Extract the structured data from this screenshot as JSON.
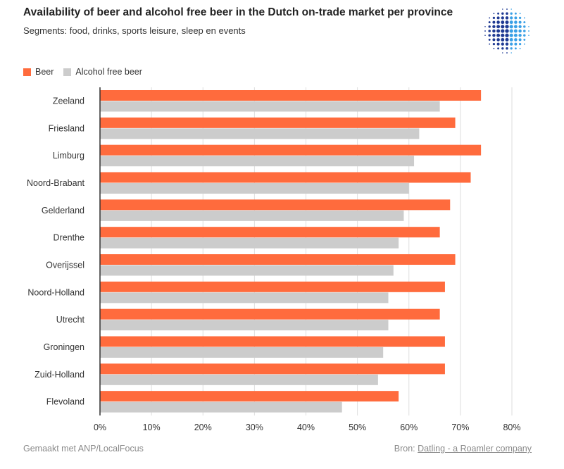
{
  "header": {
    "title": "Availability of beer and alcohol free beer in the Dutch on-trade market per province",
    "subtitle": "Segments: food, drinks, sports leisure, sleep en events"
  },
  "footer": {
    "made_with": "Gemaakt met ANP/LocalFocus",
    "source_label": "Bron:",
    "source_link": "Datling - a Roamler company"
  },
  "colors": {
    "beer": "#ff6b3d",
    "alcohol_free": "#cccccc",
    "grid": "#dedede",
    "axis": "#333333",
    "logo_dark": "#1f3a93",
    "logo_light": "#3aa0e6"
  },
  "logo_icon": "dot-sphere-logo",
  "chart_data": {
    "type": "bar",
    "orientation": "horizontal",
    "categories": [
      "Zeeland",
      "Friesland",
      "Limburg",
      "Noord-Brabant",
      "Gelderland",
      "Drenthe",
      "Overijssel",
      "Noord-Holland",
      "Utrecht",
      "Groningen",
      "Zuid-Holland",
      "Flevoland"
    ],
    "series": [
      {
        "name": "Beer",
        "values": [
          74,
          69,
          74,
          72,
          68,
          66,
          69,
          67,
          66,
          67,
          67,
          58
        ]
      },
      {
        "name": "Alcohol free beer",
        "values": [
          66,
          62,
          61,
          60,
          59,
          58,
          57,
          56,
          56,
          55,
          54,
          47
        ]
      }
    ],
    "xlim": [
      0,
      80
    ],
    "ticks": [
      "0%",
      "10%",
      "20%",
      "30%",
      "40%",
      "50%",
      "60%",
      "70%",
      "80%"
    ],
    "tick_values": [
      0,
      10,
      20,
      30,
      40,
      50,
      60,
      70,
      80
    ],
    "grid": true,
    "legend_position": "top-left"
  }
}
